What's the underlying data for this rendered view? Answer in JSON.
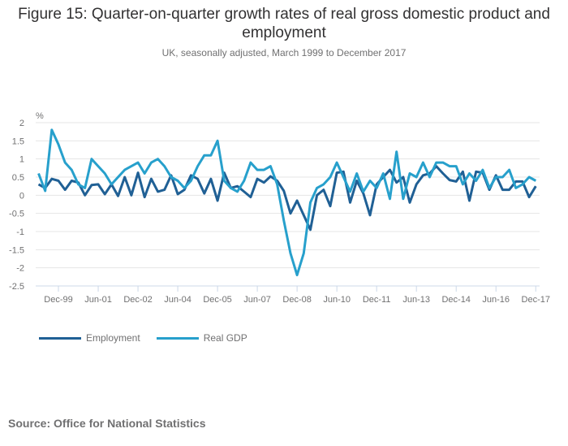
{
  "title": "Figure 15: Quarter-on-quarter growth rates of real gross domestic product and employment",
  "subtitle": "UK, seasonally adjusted, March 1999 to December 2017",
  "source": "Source: Office for National Statistics",
  "colors": {
    "employment": "#206095",
    "gdp": "#27a0cc",
    "grid": "#e5e5e5",
    "axis": "#ccd8e8"
  },
  "chart_data": {
    "type": "line",
    "title": "Figure 15: Quarter-on-quarter growth rates of real gross domestic product and employment",
    "subtitle": "UK, seasonally adjusted, March 1999 to December 2017",
    "xlabel": "",
    "ylabel": "%",
    "ylim": [
      -2.5,
      2
    ],
    "yticks": [
      2,
      1.5,
      1,
      0.5,
      0,
      -0.5,
      -1,
      -1.5,
      -2,
      -2.5
    ],
    "ytick_labels": [
      "2",
      "1.5",
      "1",
      "0.5",
      "0",
      "-0.5",
      "-1",
      "-1.5",
      "-2",
      "-2.5"
    ],
    "x_start": "Mar-99",
    "x_end": "Dec-17",
    "x_frequency": "quarterly",
    "xtick_labels": [
      "Dec-99",
      "Jun-01",
      "Dec-02",
      "Jun-04",
      "Dec-05",
      "Jun-07",
      "Dec-08",
      "Jun-10",
      "Dec-11",
      "Jun-13",
      "Dec-14",
      "Jun-16",
      "Dec-17"
    ],
    "xtick_quarter_index": [
      3,
      9,
      15,
      21,
      27,
      33,
      39,
      45,
      51,
      57,
      63,
      69,
      75
    ],
    "grid": true,
    "legend_position": "bottom-left",
    "series": [
      {
        "name": "Employment",
        "color": "#206095",
        "values": [
          0.3,
          0.2,
          0.45,
          0.4,
          0.15,
          0.4,
          0.35,
          0.0,
          0.28,
          0.3,
          0.03,
          0.3,
          -0.02,
          0.5,
          0.0,
          0.62,
          -0.05,
          0.45,
          0.1,
          0.15,
          0.55,
          0.03,
          0.15,
          0.55,
          0.45,
          0.05,
          0.45,
          -0.15,
          0.62,
          0.2,
          0.25,
          0.1,
          -0.05,
          0.45,
          0.35,
          0.52,
          0.4,
          0.12,
          -0.5,
          -0.15,
          -0.55,
          -0.95,
          0.0,
          0.15,
          -0.3,
          0.62,
          0.65,
          -0.2,
          0.4,
          0.05,
          -0.55,
          0.3,
          0.5,
          0.7,
          0.35,
          0.5,
          -0.2,
          0.3,
          0.55,
          0.6,
          0.8,
          0.6,
          0.42,
          0.38,
          0.65,
          -0.15,
          0.65,
          0.62,
          0.15,
          0.55,
          0.15,
          0.15,
          0.38,
          0.38,
          -0.05,
          0.25
        ]
      },
      {
        "name": "Real GDP",
        "color": "#27a0cc",
        "values": [
          0.6,
          0.12,
          1.8,
          1.4,
          0.9,
          0.7,
          0.3,
          0.2,
          1.0,
          0.8,
          0.6,
          0.3,
          0.5,
          0.7,
          0.8,
          0.9,
          0.6,
          0.9,
          1.0,
          0.8,
          0.5,
          0.4,
          0.2,
          0.4,
          0.8,
          1.1,
          1.1,
          1.5,
          0.4,
          0.2,
          0.1,
          0.4,
          0.9,
          0.7,
          0.7,
          0.8,
          0.3,
          -0.7,
          -1.6,
          -2.2,
          -1.6,
          -0.2,
          0.2,
          0.3,
          0.5,
          0.9,
          0.5,
          0.1,
          0.6,
          0.1,
          0.4,
          0.2,
          0.6,
          -0.1,
          1.2,
          -0.1,
          0.6,
          0.5,
          0.9,
          0.5,
          0.9,
          0.9,
          0.8,
          0.8,
          0.3,
          0.6,
          0.4,
          0.7,
          0.2,
          0.5,
          0.5,
          0.7,
          0.2,
          0.3,
          0.5,
          0.4
        ]
      }
    ]
  },
  "legend": [
    {
      "label": "Employment",
      "color": "#206095"
    },
    {
      "label": "Real GDP",
      "color": "#27a0cc"
    }
  ]
}
